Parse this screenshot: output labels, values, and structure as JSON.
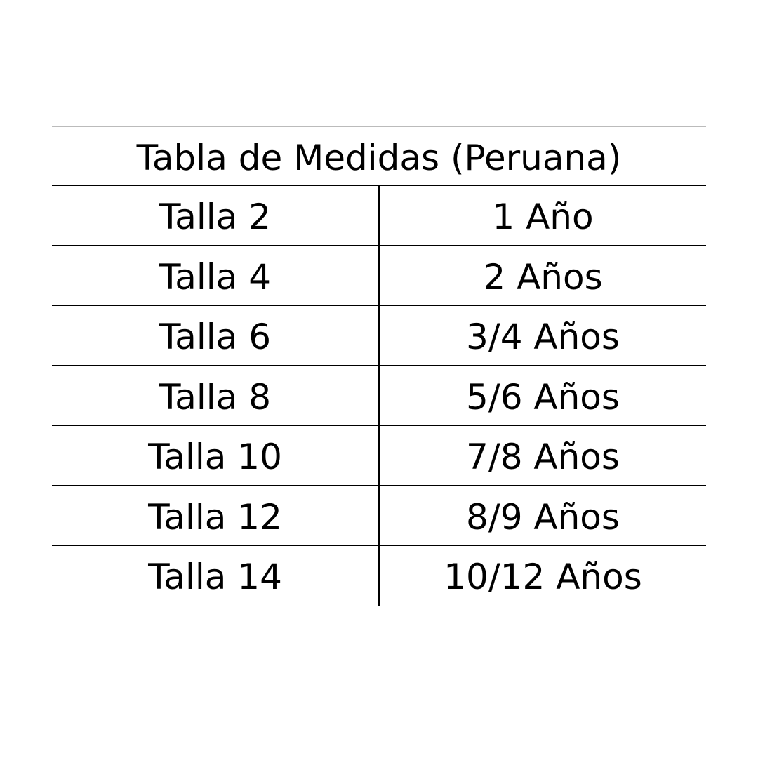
{
  "table": {
    "title": "Tabla de Medidas (Peruana)",
    "rows": [
      [
        "Talla 2",
        "1 Año"
      ],
      [
        "Talla 4",
        "2 Años"
      ],
      [
        "Talla 6",
        "3/4 Años"
      ],
      [
        "Talla 8",
        "5/6 Años"
      ],
      [
        "Talla 10",
        "7/8 Años"
      ],
      [
        "Talla 12",
        "8/9 Años"
      ],
      [
        "Talla 14",
        "10/12 Años"
      ]
    ]
  }
}
